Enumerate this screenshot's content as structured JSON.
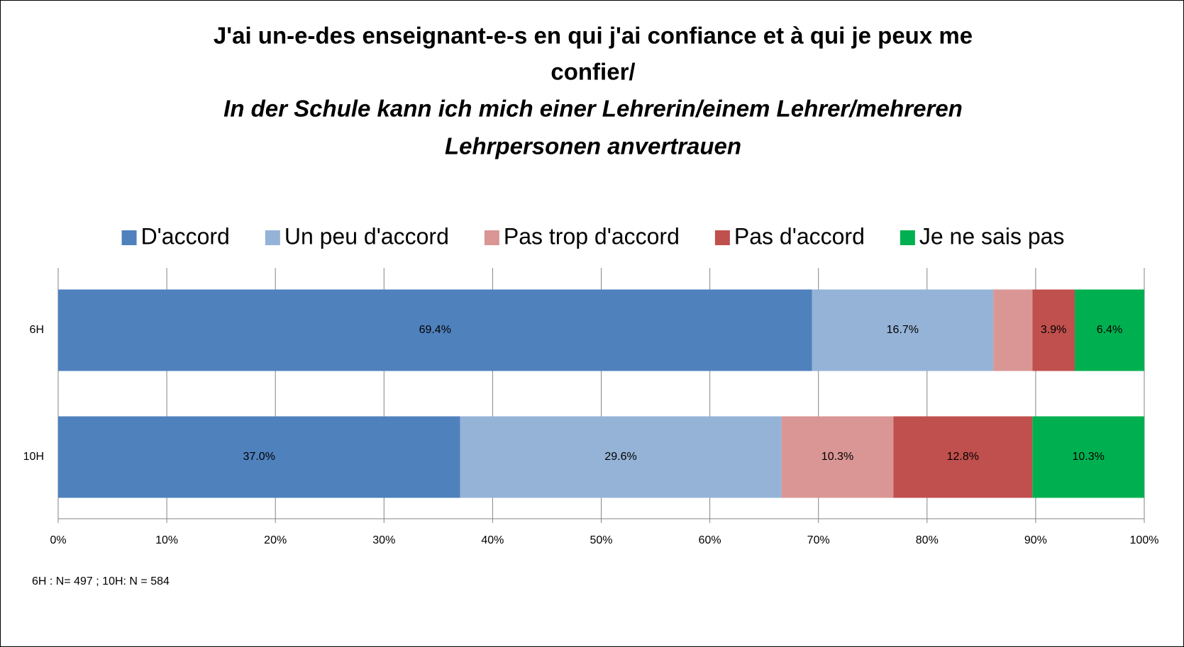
{
  "chart_data": {
    "type": "stacked_barh",
    "title": [
      "J'ai un-e-des enseignant-e-s en qui j'ai confiance et à qui je peux me",
      "confier/",
      "In der Schule kann ich mich einer Lehrerin/einem Lehrer/mehreren",
      "Lehrpersonen anvertrauen"
    ],
    "categories": [
      "6H",
      "10H"
    ],
    "series": [
      {
        "name": "D'accord",
        "color": "#4f81bd",
        "values": [
          69.4,
          37.0
        ],
        "value_labels": [
          "69.4%",
          "37.0%"
        ]
      },
      {
        "name": "Un peu d'accord",
        "color": "#95b3d7",
        "values": [
          16.7,
          29.6
        ],
        "value_labels": [
          "16.7%",
          "29.6%"
        ]
      },
      {
        "name": "Pas trop d'accord",
        "color": "#d99694",
        "values": [
          3.6,
          10.3
        ],
        "value_labels": [
          null,
          "10.3%"
        ]
      },
      {
        "name": "Pas d'accord",
        "color": "#c0504d",
        "values": [
          3.9,
          12.8
        ],
        "value_labels": [
          "3.9%",
          "12.8%"
        ]
      },
      {
        "name": "Je ne sais pas",
        "color": "#00b050",
        "values": [
          6.4,
          10.3
        ],
        "value_labels": [
          "6.4%",
          "10.3%"
        ]
      }
    ],
    "xlim": [
      0,
      100
    ],
    "xticks": [
      {
        "value": 0,
        "label": "0%"
      },
      {
        "value": 10,
        "label": "10%"
      },
      {
        "value": 20,
        "label": "20%"
      },
      {
        "value": 30,
        "label": "30%"
      },
      {
        "value": 40,
        "label": "40%"
      },
      {
        "value": 50,
        "label": "50%"
      },
      {
        "value": 60,
        "label": "60%"
      },
      {
        "value": 70,
        "label": "70%"
      },
      {
        "value": 80,
        "label": "80%"
      },
      {
        "value": 90,
        "label": "90%"
      },
      {
        "value": 100,
        "label": "100%"
      }
    ],
    "grid": true,
    "legend": "top",
    "note": "6H : N= 497 ; 10H: N = 584"
  }
}
